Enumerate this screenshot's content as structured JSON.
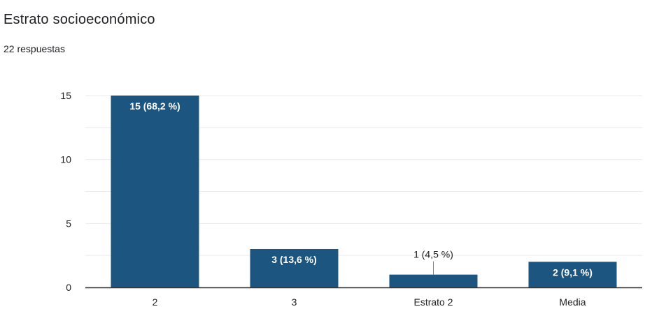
{
  "question": {
    "title": "Estrato socioeconómico",
    "responses": "22 respuestas"
  },
  "colors": {
    "bar": "#1c5680",
    "grid": "#ebebeb",
    "axis": "#333333",
    "text": "#202124",
    "label_inside": "#ffffff"
  },
  "chart_data": {
    "type": "bar",
    "title": "",
    "xlabel": "",
    "ylabel": "",
    "categories": [
      "2",
      "3",
      "Estrato 2",
      "Media"
    ],
    "values": [
      15,
      3,
      1,
      2
    ],
    "data_labels": [
      "15 (68,2 %)",
      "3 (13,6 %)",
      "1 (4,5 %)",
      "2 (9,1 %)"
    ],
    "ylim": [
      0,
      15
    ],
    "yticks": [
      0,
      5,
      10,
      15
    ],
    "minor_grid_step": 2.5,
    "grid": true,
    "legend": "none"
  }
}
